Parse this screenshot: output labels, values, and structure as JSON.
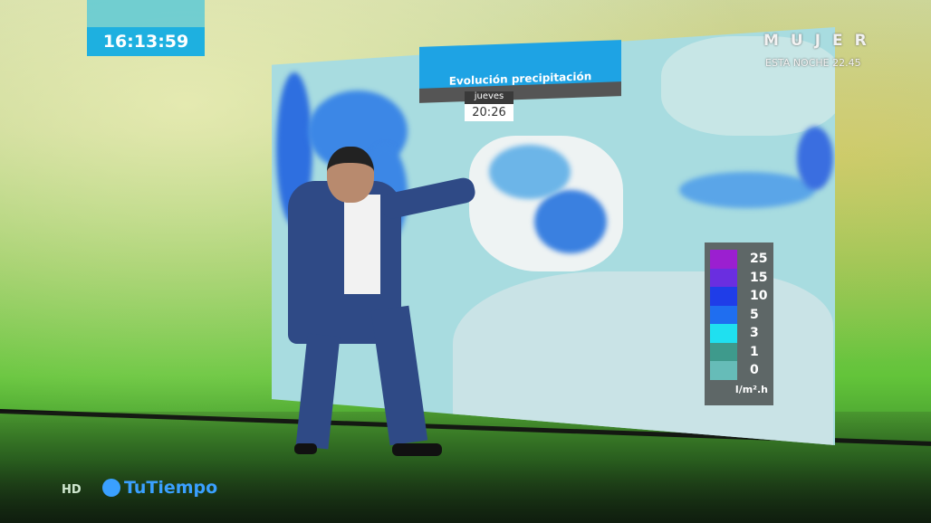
{
  "clock": {
    "time": "16:13:59"
  },
  "promo": {
    "show": "MUJER",
    "schedule": "ESTA NOCHE 22.45"
  },
  "map": {
    "title": "Evolución precipitación",
    "day": "jueves",
    "time": "20:26",
    "legend": {
      "unit": "l/m².h",
      "items": [
        {
          "value": "25",
          "color": "#9b1fd0"
        },
        {
          "value": "15",
          "color": "#6a2ee0"
        },
        {
          "value": "10",
          "color": "#1f3de8"
        },
        {
          "value": "5",
          "color": "#1f6ef0"
        },
        {
          "value": "3",
          "color": "#1fe0f0"
        },
        {
          "value": "1",
          "color": "#3e9a8c"
        },
        {
          "value": "0",
          "color": "#66bcb8"
        }
      ]
    }
  },
  "branding": {
    "quality": "HD",
    "channel": "TuTiempo"
  }
}
